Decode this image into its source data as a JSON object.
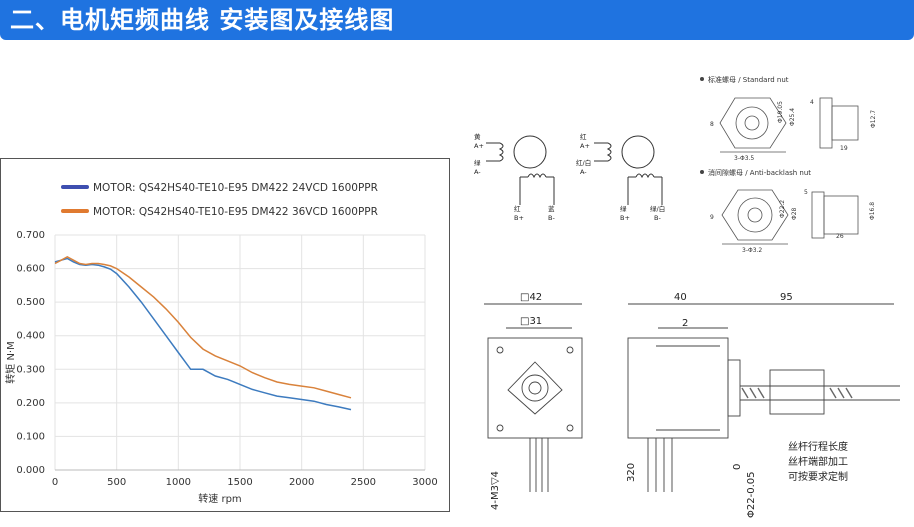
{
  "banner": {
    "title": "二、电机矩频曲线 安装图及接线图"
  },
  "chart_data": {
    "type": "line",
    "xlabel": "转速 rpm",
    "ylabel": "转矩 N·M",
    "xlim": [
      0,
      3000
    ],
    "ylim": [
      0,
      0.7
    ],
    "xticks": [
      "0",
      "500",
      "1000",
      "1500",
      "2000",
      "2500",
      "3000"
    ],
    "yticks": [
      "0.000",
      "0.100",
      "0.200",
      "0.300",
      "0.400",
      "0.500",
      "0.600",
      "0.700"
    ],
    "grid": true,
    "legend_position": "top",
    "series": [
      {
        "name": "MOTOR: QS42HS40-TE10-E95 DM422 24VCD  1600PPR",
        "color": "#3d7bbf",
        "legend_color": "#3e4fb0",
        "x": [
          0,
          50,
          100,
          150,
          200,
          250,
          300,
          350,
          400,
          450,
          500,
          600,
          700,
          800,
          900,
          1000,
          1100,
          1200,
          1300,
          1400,
          1500,
          1600,
          1700,
          1800,
          1900,
          2000,
          2100,
          2200,
          2300,
          2400
        ],
        "y": [
          0.62,
          0.625,
          0.63,
          0.62,
          0.612,
          0.61,
          0.612,
          0.61,
          0.605,
          0.598,
          0.585,
          0.545,
          0.5,
          0.45,
          0.4,
          0.35,
          0.3,
          0.3,
          0.28,
          0.27,
          0.255,
          0.24,
          0.23,
          0.22,
          0.215,
          0.21,
          0.205,
          0.195,
          0.188,
          0.18
        ]
      },
      {
        "name": "MOTOR: QS42HS40-TE10-E95 DM422 36VCD  1600PPR",
        "color": "#d9823b",
        "legend_color": "#e07a30",
        "x": [
          0,
          50,
          100,
          150,
          200,
          250,
          300,
          350,
          400,
          450,
          500,
          600,
          700,
          800,
          900,
          1000,
          1100,
          1200,
          1300,
          1400,
          1500,
          1600,
          1700,
          1800,
          1900,
          2000,
          2100,
          2200,
          2300,
          2400
        ],
        "y": [
          0.615,
          0.625,
          0.635,
          0.625,
          0.615,
          0.612,
          0.615,
          0.615,
          0.612,
          0.608,
          0.6,
          0.575,
          0.545,
          0.515,
          0.48,
          0.44,
          0.395,
          0.36,
          0.34,
          0.325,
          0.31,
          0.29,
          0.275,
          0.262,
          0.255,
          0.25,
          0.245,
          0.235,
          0.225,
          0.215
        ]
      }
    ]
  },
  "wiring": {
    "a_red": "红",
    "a_plus": "A+",
    "a_green": "绿",
    "a_minus": "A-",
    "a_yellow": "黄",
    "a_blue": "蓝",
    "b_red": "红",
    "b_plus": "B+",
    "b_green": "绿",
    "b_minus": "B-",
    "b_green_white": "绿/白",
    "b_red_white": "红/白"
  },
  "nut": {
    "standard_label": "标准螺母 / Standard nut",
    "anti_label": "消间隙螺母 / Anti-backlash nut",
    "std_dims": {
      "d1": "Φ19.05",
      "d2": "Φ25.4",
      "d3": "Φ12.7",
      "w": "4",
      "l": "19",
      "h": "8",
      "holes": "3-Φ3.5"
    },
    "anti_dims": {
      "d1": "Φ22.2",
      "d2": "Φ28",
      "d3": "Φ16.8",
      "w": "5",
      "l": "26",
      "h": "9",
      "holes": "3-Φ3.2"
    }
  },
  "motor": {
    "sq42": "□42",
    "sq31": "□31",
    "holes": "4-M3▽4",
    "lead": "320",
    "len40": "40",
    "len95": "95",
    "len2": "2",
    "zero": "0",
    "shaft": "Φ22-0.05",
    "note1": "丝杆行程长度",
    "note2": "丝杆端部加工",
    "note3": "可按要求定制"
  }
}
